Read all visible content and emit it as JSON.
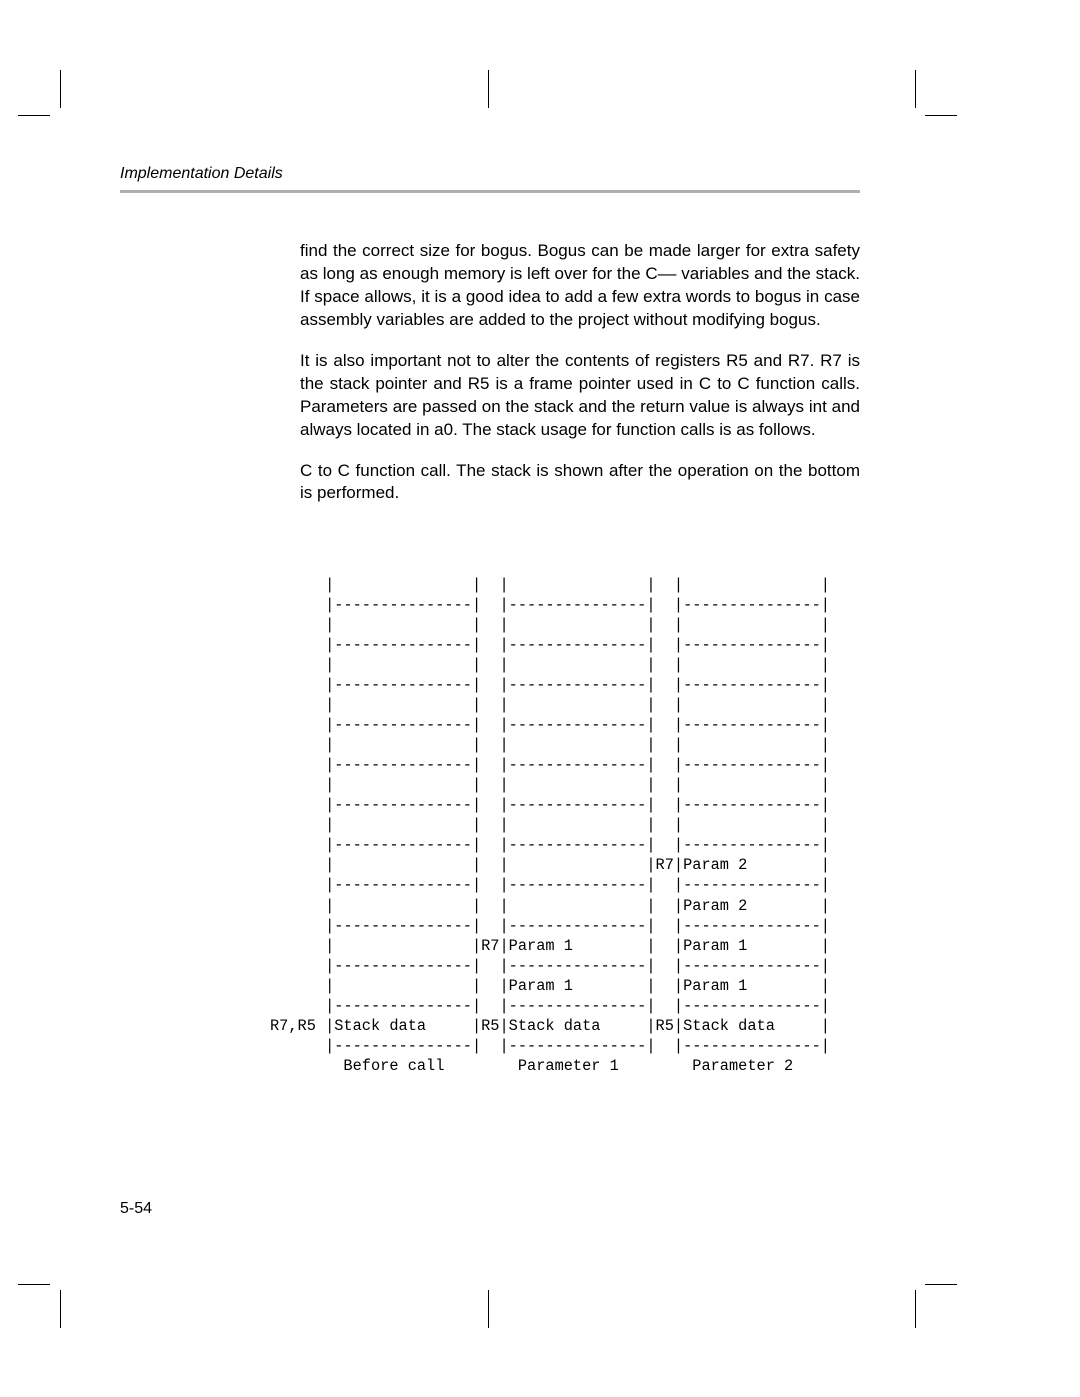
{
  "header": {
    "title": "Implementation Details"
  },
  "body": {
    "p1": "find the correct size for bogus. Bogus can be made larger for extra safety as long as enough memory is left over for the C–– variables and the stack. If space allows, it is a good idea to add a few extra words to bogus in case assembly variables are added to the project without modifying bogus.",
    "p2": "It is also important not to alter the contents of registers R5 and R7. R7 is the stack pointer and R5 is a frame pointer used in C to C function calls. Parameters are passed on the stack and the return value is always int and always located in a0. The stack usage for function calls is as follows.",
    "p3": "C to C function call. The stack is shown after the operation on the bottom is performed."
  },
  "diagram": {
    "columns": [
      {
        "label": "Before call",
        "pointer_top": "R7,R5",
        "rows": [
          "",
          "",
          "",
          "",
          "Stack data"
        ]
      },
      {
        "label": "Parameter 1",
        "pointer_top": "R5",
        "rows": [
          "",
          "",
          "Param 1",
          "Param 1",
          "Stack data"
        ],
        "r7_row": 2
      },
      {
        "label": "Parameter 2",
        "pointer_top": "R5",
        "rows": [
          "Param 2",
          "Param 2",
          "Param 1",
          "Param 1",
          "Stack data"
        ],
        "r7_row": 0
      }
    ],
    "ascii": "      |               |  |               |  |               |\n      |---------------|  |---------------|  |---------------|\n      |               |  |               |  |               |\n      |---------------|  |---------------|  |---------------|\n      |               |  |               |  |               |\n      |---------------|  |---------------|  |---------------|\n      |               |  |               |  |               |\n      |---------------|  |---------------|  |---------------|\n      |               |  |               |  |               |\n      |---------------|  |---------------|  |---------------|\n      |               |  |               |  |               |\n      |---------------|  |---------------|  |---------------|\n      |               |  |               |  |               |\n      |---------------|  |---------------|  |---------------|\n      |               |  |               |R7|Param 2        |\n      |---------------|  |---------------|  |---------------|\n      |               |  |               |  |Param 2        |\n      |---------------|  |---------------|  |---------------|\n      |               |R7|Param 1        |  |Param 1        |\n      |---------------|  |---------------|  |---------------|\n      |               |  |Param 1        |  |Param 1        |\n      |---------------|  |---------------|  |---------------|\nR7,R5 |Stack data     |R5|Stack data     |R5|Stack data     |\n      |---------------|  |---------------|  |---------------|\n        Before call        Parameter 1        Parameter 2"
  },
  "footer": {
    "page_num": "5-54"
  }
}
